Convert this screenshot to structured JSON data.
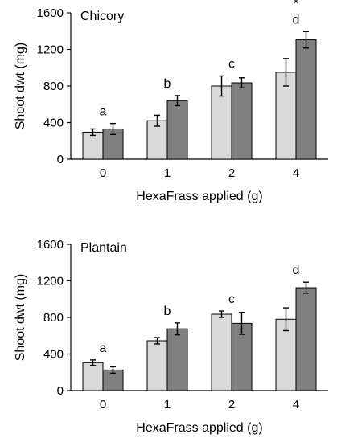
{
  "chart_data": [
    {
      "type": "bar",
      "title": "Chicory",
      "xlabel": "HexaFrass applied (g)",
      "ylabel": "Shoot dwt (mg)",
      "ylim": [
        0,
        1600
      ],
      "yticks": [
        "0",
        "400",
        "800",
        "1200",
        "1600"
      ],
      "categories": [
        "0",
        "1",
        "2",
        "4"
      ],
      "series": [
        {
          "values": [
            295,
            420,
            800,
            950
          ],
          "errors": [
            35,
            60,
            110,
            150
          ],
          "color": "#d9d9d9"
        },
        {
          "values": [
            330,
            640,
            835,
            1305
          ],
          "errors": [
            60,
            55,
            55,
            90
          ],
          "color": "#7f7f7f"
        }
      ],
      "annotations": [
        {
          "category": 0,
          "text": "a"
        },
        {
          "category": 1,
          "text": "b"
        },
        {
          "category": 2,
          "text": "c"
        },
        {
          "category": 3,
          "text": "d"
        },
        {
          "category": 3,
          "text": "*"
        }
      ],
      "grid": false
    },
    {
      "type": "bar",
      "title": "Plantain",
      "xlabel": "HexaFrass applied (g)",
      "ylabel": "Shoot dwt (mg)",
      "ylim": [
        0,
        1600
      ],
      "yticks": [
        "0",
        "400",
        "800",
        "1200",
        "1600"
      ],
      "categories": [
        "0",
        "1",
        "2",
        "4"
      ],
      "series": [
        {
          "values": [
            305,
            545,
            835,
            780
          ],
          "errors": [
            30,
            35,
            35,
            125
          ],
          "color": "#d9d9d9"
        },
        {
          "values": [
            225,
            675,
            735,
            1125
          ],
          "errors": [
            35,
            65,
            120,
            60
          ],
          "color": "#7f7f7f"
        }
      ],
      "annotations": [
        {
          "category": 0,
          "text": "a"
        },
        {
          "category": 1,
          "text": "b"
        },
        {
          "category": 2,
          "text": "c"
        },
        {
          "category": 3,
          "text": "d"
        }
      ],
      "grid": false
    }
  ]
}
